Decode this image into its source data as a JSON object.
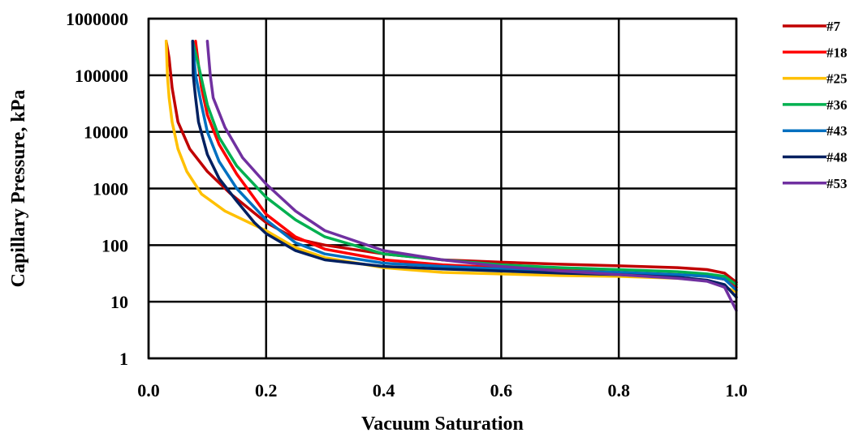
{
  "chart_data": {
    "type": "line",
    "xlabel": "Vacuum Saturation",
    "ylabel": "Capillary Pressure, kPa",
    "xlim": [
      0.0,
      1.0
    ],
    "ylim": [
      1,
      1000000
    ],
    "yscale": "log",
    "grid": true,
    "legend_position": "right",
    "x_ticks": [
      "0.0",
      "0.2",
      "0.4",
      "0.6",
      "0.8",
      "1.0"
    ],
    "y_ticks": [
      "1",
      "10",
      "100",
      "1000",
      "10000",
      "100000",
      "1000000"
    ],
    "series": [
      {
        "name": "#7",
        "color": "#c00000",
        "points": [
          [
            0.03,
            400000
          ],
          [
            0.035,
            200000
          ],
          [
            0.04,
            60000
          ],
          [
            0.05,
            15000
          ],
          [
            0.07,
            5000
          ],
          [
            0.1,
            2000
          ],
          [
            0.14,
            800
          ],
          [
            0.2,
            250
          ],
          [
            0.25,
            130
          ],
          [
            0.3,
            100
          ],
          [
            0.4,
            70
          ],
          [
            0.5,
            55
          ],
          [
            0.6,
            50
          ],
          [
            0.7,
            46
          ],
          [
            0.8,
            43
          ],
          [
            0.9,
            40
          ],
          [
            0.95,
            37
          ],
          [
            0.98,
            32
          ],
          [
            1.0,
            22
          ]
        ]
      },
      {
        "name": "#18",
        "color": "#ff0000",
        "points": [
          [
            0.08,
            400000
          ],
          [
            0.085,
            150000
          ],
          [
            0.09,
            60000
          ],
          [
            0.1,
            20000
          ],
          [
            0.12,
            6000
          ],
          [
            0.15,
            1800
          ],
          [
            0.2,
            350
          ],
          [
            0.25,
            140
          ],
          [
            0.3,
            85
          ],
          [
            0.4,
            55
          ],
          [
            0.5,
            45
          ],
          [
            0.6,
            40
          ],
          [
            0.7,
            36
          ],
          [
            0.8,
            33
          ],
          [
            0.9,
            30
          ],
          [
            0.95,
            28
          ],
          [
            0.98,
            25
          ],
          [
            1.0,
            18
          ]
        ]
      },
      {
        "name": "#25",
        "color": "#ffc000",
        "points": [
          [
            0.03,
            400000
          ],
          [
            0.032,
            100000
          ],
          [
            0.035,
            40000
          ],
          [
            0.04,
            15000
          ],
          [
            0.05,
            5000
          ],
          [
            0.065,
            2000
          ],
          [
            0.09,
            800
          ],
          [
            0.13,
            400
          ],
          [
            0.2,
            180
          ],
          [
            0.25,
            90
          ],
          [
            0.3,
            60
          ],
          [
            0.4,
            40
          ],
          [
            0.5,
            33
          ],
          [
            0.6,
            31
          ],
          [
            0.7,
            29
          ],
          [
            0.8,
            28
          ],
          [
            0.9,
            26
          ],
          [
            0.95,
            24
          ],
          [
            1.0,
            15
          ]
        ]
      },
      {
        "name": "#36",
        "color": "#00b050",
        "points": [
          [
            0.075,
            400000
          ],
          [
            0.085,
            150000
          ],
          [
            0.1,
            30000
          ],
          [
            0.12,
            8000
          ],
          [
            0.15,
            2500
          ],
          [
            0.2,
            700
          ],
          [
            0.25,
            280
          ],
          [
            0.3,
            140
          ],
          [
            0.4,
            70
          ],
          [
            0.5,
            55
          ],
          [
            0.6,
            45
          ],
          [
            0.7,
            40
          ],
          [
            0.8,
            37
          ],
          [
            0.9,
            34
          ],
          [
            0.95,
            31
          ],
          [
            0.98,
            28
          ],
          [
            1.0,
            20
          ]
        ]
      },
      {
        "name": "#43",
        "color": "#0070c0",
        "points": [
          [
            0.075,
            400000
          ],
          [
            0.08,
            100000
          ],
          [
            0.09,
            30000
          ],
          [
            0.1,
            10000
          ],
          [
            0.12,
            3000
          ],
          [
            0.15,
            1000
          ],
          [
            0.2,
            280
          ],
          [
            0.25,
            110
          ],
          [
            0.3,
            70
          ],
          [
            0.4,
            48
          ],
          [
            0.5,
            42
          ],
          [
            0.6,
            38
          ],
          [
            0.7,
            35
          ],
          [
            0.8,
            33
          ],
          [
            0.9,
            30
          ],
          [
            0.95,
            28
          ],
          [
            0.98,
            25
          ],
          [
            1.0,
            16
          ]
        ]
      },
      {
        "name": "#48",
        "color": "#002060",
        "points": [
          [
            0.075,
            400000
          ],
          [
            0.076,
            100000
          ],
          [
            0.08,
            40000
          ],
          [
            0.085,
            15000
          ],
          [
            0.1,
            4000
          ],
          [
            0.12,
            1500
          ],
          [
            0.15,
            600
          ],
          [
            0.18,
            250
          ],
          [
            0.2,
            160
          ],
          [
            0.25,
            80
          ],
          [
            0.3,
            55
          ],
          [
            0.4,
            42
          ],
          [
            0.5,
            38
          ],
          [
            0.6,
            35
          ],
          [
            0.7,
            32
          ],
          [
            0.8,
            30
          ],
          [
            0.9,
            27
          ],
          [
            0.95,
            24
          ],
          [
            0.98,
            20
          ],
          [
            1.0,
            12
          ]
        ]
      },
      {
        "name": "#53",
        "color": "#7030a0",
        "points": [
          [
            0.1,
            400000
          ],
          [
            0.105,
            100000
          ],
          [
            0.11,
            40000
          ],
          [
            0.13,
            12000
          ],
          [
            0.16,
            3500
          ],
          [
            0.2,
            1200
          ],
          [
            0.25,
            400
          ],
          [
            0.3,
            180
          ],
          [
            0.4,
            80
          ],
          [
            0.5,
            55
          ],
          [
            0.6,
            42
          ],
          [
            0.7,
            35
          ],
          [
            0.8,
            30
          ],
          [
            0.9,
            26
          ],
          [
            0.95,
            23
          ],
          [
            0.98,
            18
          ],
          [
            1.0,
            7
          ]
        ]
      }
    ]
  }
}
